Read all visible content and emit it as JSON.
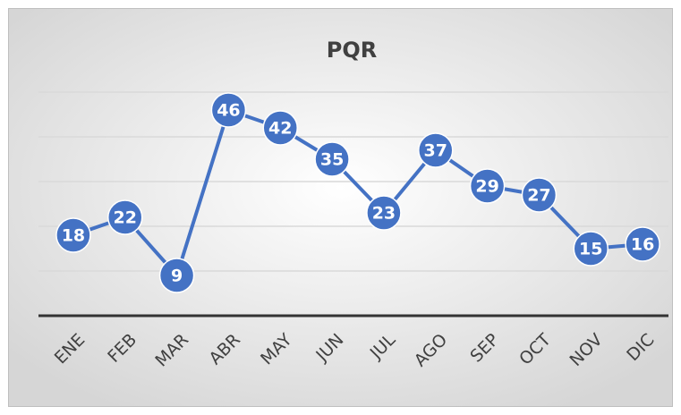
{
  "chart_data": {
    "type": "line",
    "title": "PQR",
    "categories": [
      "ENE",
      "FEB",
      "MAR",
      "ABR",
      "MAY",
      "JUN",
      "JUL",
      "AGO",
      "SEP",
      "OCT",
      "NOV",
      "DIC"
    ],
    "values": [
      18,
      22,
      9,
      46,
      42,
      35,
      23,
      37,
      29,
      27,
      15,
      16
    ],
    "color": "#4472c4",
    "ylim": [
      0,
      50
    ],
    "yticks": [
      10,
      20,
      30,
      40,
      50
    ],
    "grid": true
  }
}
